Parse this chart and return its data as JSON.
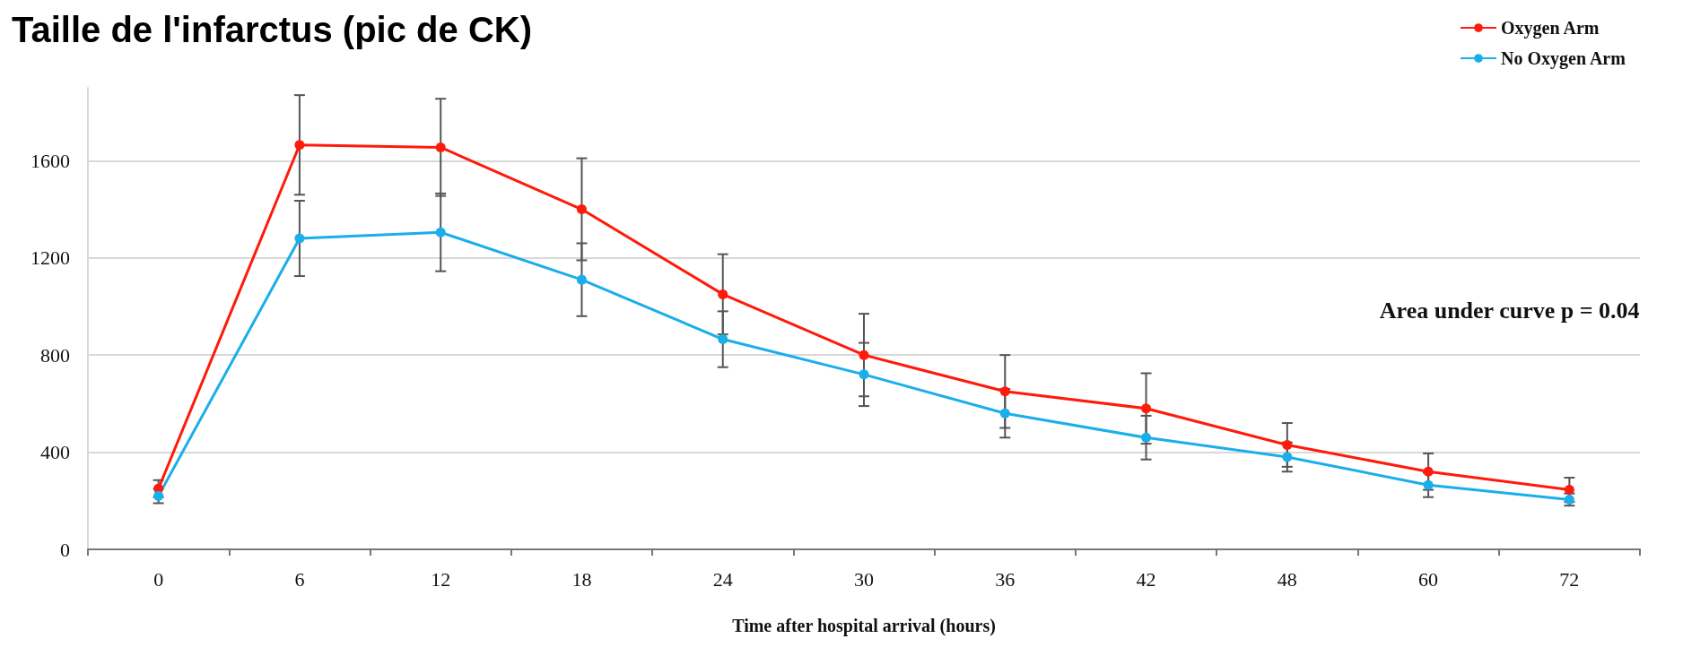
{
  "chart_data": {
    "type": "line",
    "title": "Taille de l'infarctus (pic de CK)",
    "xlabel": "Time after hospital arrival (hours)",
    "categories": [
      "0",
      "6",
      "12",
      "18",
      "24",
      "30",
      "36",
      "42",
      "48",
      "60",
      "72"
    ],
    "series": [
      {
        "name": "Oxygen Arm",
        "color": "#ff1a0a",
        "values": [
          250,
          1665,
          1655,
          1400,
          1050,
          800,
          650,
          580,
          430,
          320,
          245
        ],
        "errors": [
          35,
          205,
          200,
          210,
          165,
          170,
          150,
          145,
          90,
          75,
          50
        ]
      },
      {
        "name": "No Oxygen Arm",
        "color": "#1aaeea",
        "values": [
          220,
          1280,
          1305,
          1110,
          865,
          720,
          560,
          460,
          380,
          265,
          205
        ],
        "errors": [
          30,
          155,
          160,
          150,
          115,
          130,
          100,
          90,
          60,
          50,
          25
        ]
      }
    ],
    "ylim": [
      0,
      1900
    ],
    "yticks": [
      0,
      400,
      800,
      1200,
      1600
    ],
    "grid": "y",
    "legend": "top right",
    "marker": "circle",
    "line_style": "solid",
    "annotations": [
      "Area under curve p = 0.04"
    ]
  }
}
